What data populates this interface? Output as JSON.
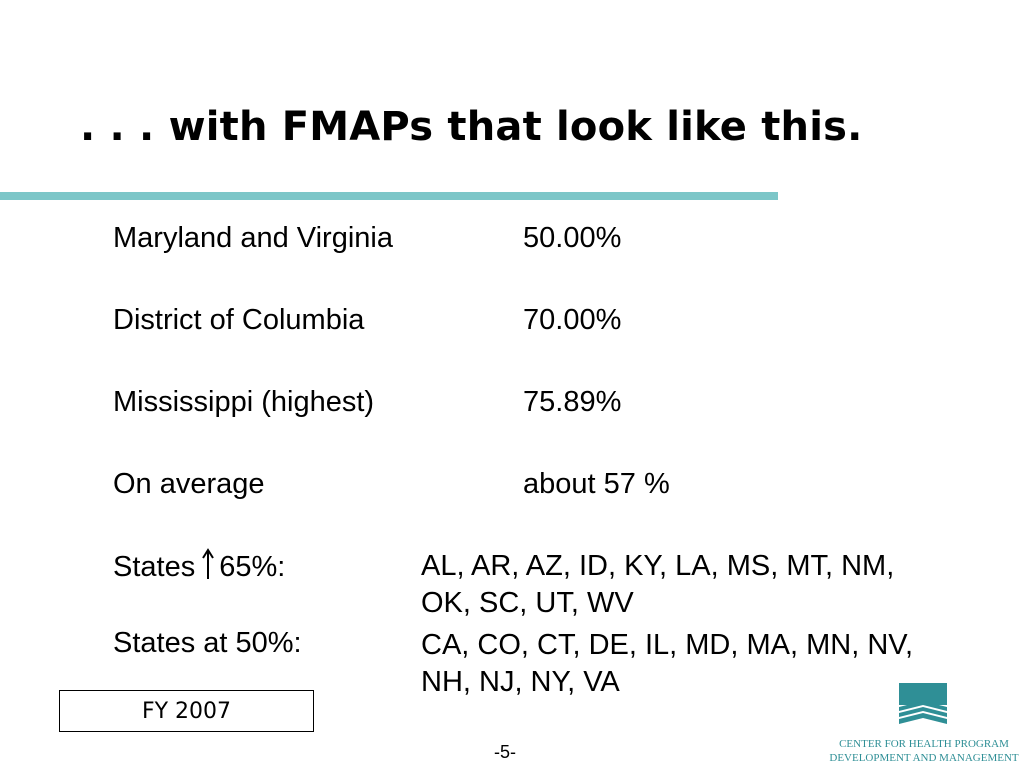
{
  "slide": {
    "title": ". . . with FMAPs that look like this.",
    "rows": [
      {
        "label": "Maryland and Virginia",
        "value": "50.00%"
      },
      {
        "label": "District of Columbia",
        "value": "70.00%"
      },
      {
        "label": "Mississippi (highest)",
        "value": "75.89%"
      },
      {
        "label": "On average",
        "value": "about 57 %"
      }
    ],
    "states_above": {
      "prefix": "States",
      "suffix": "65%:",
      "line1": "AL, AR, AZ, ID, KY, LA, MS, MT, NM,",
      "line2": "OK, SC, UT, WV"
    },
    "states_at": {
      "label": "States at 50%:",
      "line1": "CA, CO, CT, DE, IL, MD, MA, MN, NV,",
      "line2": "NH, NJ, NY, VA"
    },
    "fiscal_year": "FY 2007",
    "page_number": "-5-",
    "logo_text": {
      "line1": "CENTER FOR HEALTH PROGRAM",
      "line2": "DEVELOPMENT AND MANAGEMENT"
    },
    "colors": {
      "rule": "#7cc6c8",
      "logo": "#2f8f96"
    },
    "icons": {
      "arrow": "up-arrow-icon"
    }
  }
}
